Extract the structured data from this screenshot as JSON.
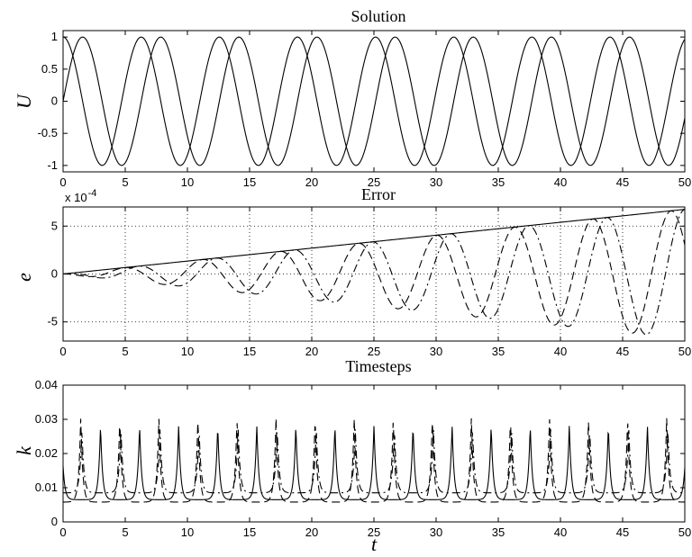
{
  "chart_data": [
    {
      "type": "line",
      "title": "Solution",
      "ylabel": "U",
      "xlabel": "",
      "xlim": [
        0,
        50
      ],
      "ylim": [
        -1.1,
        1.1
      ],
      "xticks": [
        0,
        5,
        10,
        15,
        20,
        25,
        30,
        35,
        40,
        45,
        50
      ],
      "yticks": [
        -1,
        -0.5,
        0,
        0.5,
        1
      ],
      "ytick_labels": [
        "-1",
        "-0.5",
        "0",
        "0.5",
        "1"
      ],
      "grid": false,
      "series": [
        {
          "style": "solid",
          "formula": "sin(t)",
          "samples": 500
        },
        {
          "style": "solid",
          "formula": "cos(t)",
          "samples": 500
        }
      ]
    },
    {
      "type": "line",
      "title": "Error",
      "ylabel": "e",
      "xlabel": "",
      "exponent_label": "x 10",
      "exponent_power": "-4",
      "xlim": [
        0,
        50
      ],
      "ylim": [
        -0.0007,
        0.0007
      ],
      "xticks": [
        0,
        5,
        10,
        15,
        20,
        25,
        30,
        35,
        40,
        45,
        50
      ],
      "yticks": [
        -0.0005,
        0,
        0.0005
      ],
      "ytick_labels": [
        "-5",
        "0",
        "5"
      ],
      "grid": true,
      "series": [
        {
          "style": "solid",
          "formula": "1.35e-5 * t",
          "samples": 400
        },
        {
          "style": "dash",
          "formula": "-1.35e-5 * t * sin(t - 0.2)",
          "samples": 400
        },
        {
          "style": "dashdot",
          "formula": "1.35e-5 * t * cos(t + 0.25)",
          "samples": 400
        }
      ]
    },
    {
      "type": "line",
      "title": "Timesteps",
      "ylabel": "k",
      "xlabel": "t",
      "xlim": [
        0,
        50
      ],
      "ylim": [
        0,
        0.04
      ],
      "xticks": [
        0,
        5,
        10,
        15,
        20,
        25,
        30,
        35,
        40,
        45,
        50
      ],
      "yticks": [
        0,
        0.01,
        0.02,
        0.03,
        0.04
      ],
      "ytick_labels": [
        "0",
        "0.01",
        "0.02",
        "0.03",
        "0.04"
      ],
      "grid": false,
      "series": [
        {
          "style": "solid",
          "baseline": 0.0065,
          "peak_height": 0.022,
          "phase": 1.7,
          "samples": 1200
        },
        {
          "style": "dash",
          "baseline": 0.0058,
          "peak_height": 0.025,
          "phase": 0.15,
          "samples": 1200
        },
        {
          "style": "dashdot",
          "baseline": 0.0085,
          "peak_height": 0.019,
          "phase": 3.2,
          "samples": 1200
        }
      ]
    }
  ]
}
